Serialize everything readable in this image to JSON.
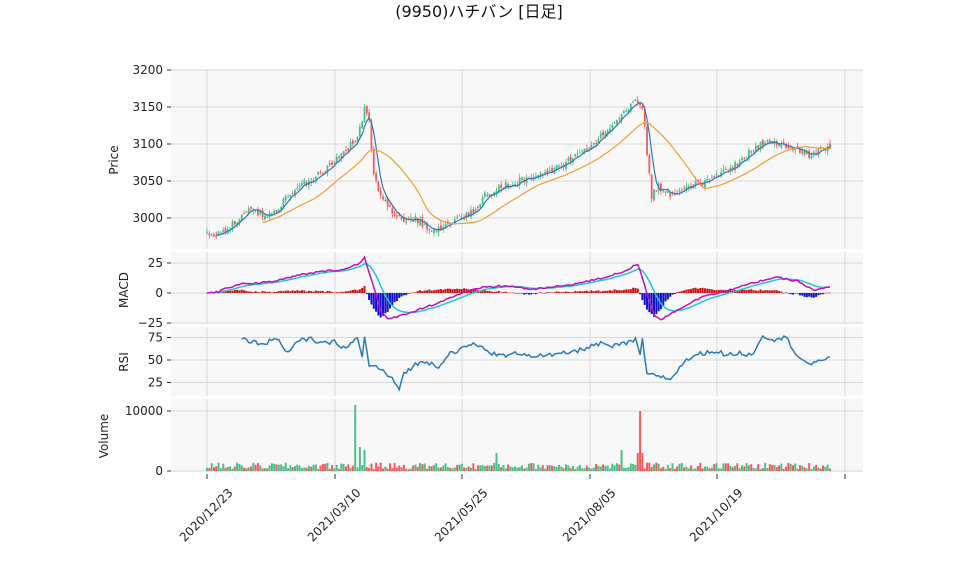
{
  "chart_data": {
    "type": "candlestick",
    "title": "(9950)ハチバン  [日足]",
    "x_ticks": [
      "2020/12/23",
      "2021/03/10",
      "2021/05/25",
      "2021/08/05",
      "2021/10/19"
    ],
    "panels": [
      {
        "name": "price",
        "ylabel": "Price",
        "ylim": [
          2965,
          3200
        ],
        "yticks": [
          "3000",
          "3050",
          "3100",
          "3150",
          "3200"
        ]
      },
      {
        "name": "macd",
        "ylabel": "MACD",
        "ylim": [
          -25,
          30
        ],
        "yticks": [
          "−25",
          "0",
          "25"
        ]
      },
      {
        "name": "rsi",
        "ylabel": "RSI",
        "ylim": [
          10,
          80
        ],
        "yticks": [
          "25",
          "50",
          "75"
        ]
      },
      {
        "name": "volume",
        "ylabel": "Volume",
        "ylim": [
          0,
          11000
        ],
        "yticks": [
          "0",
          "10000"
        ]
      }
    ],
    "price_anchors": [
      [
        0,
        2977
      ],
      [
        5,
        2978
      ],
      [
        10,
        2990
      ],
      [
        15,
        3005
      ],
      [
        20,
        3010
      ],
      [
        25,
        3003
      ],
      [
        30,
        3010
      ],
      [
        35,
        3030
      ],
      [
        40,
        3045
      ],
      [
        45,
        3050
      ],
      [
        50,
        3062
      ],
      [
        55,
        3075
      ],
      [
        60,
        3090
      ],
      [
        65,
        3112
      ],
      [
        68,
        3145
      ],
      [
        70,
        3130
      ],
      [
        72,
        3060
      ],
      [
        75,
        3030
      ],
      [
        80,
        3010
      ],
      [
        85,
        2995
      ],
      [
        90,
        3000
      ],
      [
        95,
        2985
      ],
      [
        100,
        2985
      ],
      [
        105,
        2995
      ],
      [
        110,
        3000
      ],
      [
        115,
        3010
      ],
      [
        120,
        3030
      ],
      [
        125,
        3040
      ],
      [
        130,
        3045
      ],
      [
        135,
        3050
      ],
      [
        140,
        3055
      ],
      [
        145,
        3060
      ],
      [
        150,
        3065
      ],
      [
        155,
        3075
      ],
      [
        160,
        3085
      ],
      [
        165,
        3095
      ],
      [
        170,
        3110
      ],
      [
        175,
        3125
      ],
      [
        180,
        3140
      ],
      [
        185,
        3160
      ],
      [
        188,
        3150
      ],
      [
        190,
        3090
      ],
      [
        192,
        3030
      ],
      [
        195,
        3045
      ],
      [
        200,
        3030
      ],
      [
        205,
        3035
      ],
      [
        210,
        3045
      ],
      [
        215,
        3050
      ],
      [
        220,
        3058
      ],
      [
        225,
        3065
      ],
      [
        230,
        3075
      ],
      [
        235,
        3090
      ],
      [
        240,
        3102
      ],
      [
        245,
        3105
      ],
      [
        250,
        3095
      ],
      [
        255,
        3090
      ],
      [
        260,
        3085
      ],
      [
        265,
        3092
      ],
      [
        269,
        3097
      ]
    ],
    "macd_anchors": [
      [
        0,
        0
      ],
      [
        5,
        1
      ],
      [
        10,
        5
      ],
      [
        15,
        8
      ],
      [
        20,
        8
      ],
      [
        30,
        10
      ],
      [
        40,
        15
      ],
      [
        50,
        18
      ],
      [
        60,
        20
      ],
      [
        66,
        25
      ],
      [
        68,
        30
      ],
      [
        72,
        5
      ],
      [
        75,
        -15
      ],
      [
        78,
        -22
      ],
      [
        85,
        -18
      ],
      [
        100,
        -8
      ],
      [
        110,
        0
      ],
      [
        120,
        5
      ],
      [
        130,
        6
      ],
      [
        140,
        3
      ],
      [
        150,
        5
      ],
      [
        160,
        8
      ],
      [
        170,
        12
      ],
      [
        180,
        18
      ],
      [
        186,
        24
      ],
      [
        190,
        0
      ],
      [
        193,
        -18
      ],
      [
        196,
        -22
      ],
      [
        205,
        -12
      ],
      [
        215,
        -2
      ],
      [
        225,
        2
      ],
      [
        235,
        8
      ],
      [
        245,
        13
      ],
      [
        255,
        10
      ],
      [
        262,
        2
      ],
      [
        269,
        5
      ]
    ],
    "rsi_anchors": [
      [
        15,
        73
      ],
      [
        20,
        70
      ],
      [
        25,
        68
      ],
      [
        30,
        75
      ],
      [
        35,
        58
      ],
      [
        40,
        72
      ],
      [
        45,
        73
      ],
      [
        50,
        68
      ],
      [
        55,
        70
      ],
      [
        60,
        63
      ],
      [
        65,
        75
      ],
      [
        67,
        52
      ],
      [
        68,
        75
      ],
      [
        70,
        45
      ],
      [
        75,
        40
      ],
      [
        80,
        28
      ],
      [
        83,
        18
      ],
      [
        85,
        35
      ],
      [
        90,
        45
      ],
      [
        95,
        48
      ],
      [
        100,
        43
      ],
      [
        105,
        58
      ],
      [
        110,
        62
      ],
      [
        115,
        68
      ],
      [
        120,
        62
      ],
      [
        125,
        55
      ],
      [
        130,
        55
      ],
      [
        135,
        58
      ],
      [
        140,
        55
      ],
      [
        145,
        55
      ],
      [
        150,
        55
      ],
      [
        155,
        58
      ],
      [
        160,
        60
      ],
      [
        165,
        65
      ],
      [
        170,
        68
      ],
      [
        175,
        65
      ],
      [
        180,
        68
      ],
      [
        185,
        72
      ],
      [
        187,
        55
      ],
      [
        188,
        74
      ],
      [
        190,
        33
      ],
      [
        195,
        33
      ],
      [
        200,
        28
      ],
      [
        205,
        45
      ],
      [
        210,
        55
      ],
      [
        215,
        58
      ],
      [
        220,
        60
      ],
      [
        225,
        55
      ],
      [
        230,
        58
      ],
      [
        235,
        55
      ],
      [
        240,
        77
      ],
      [
        245,
        73
      ],
      [
        250,
        75
      ],
      [
        255,
        55
      ],
      [
        260,
        45
      ],
      [
        265,
        48
      ],
      [
        269,
        55
      ]
    ],
    "volume_spikes": [
      [
        64,
        11000
      ],
      [
        66,
        4000
      ],
      [
        68,
        3500
      ],
      [
        125,
        3000
      ],
      [
        179,
        3500
      ],
      [
        187,
        10000
      ],
      [
        186,
        3000
      ],
      [
        188,
        3000
      ]
    ],
    "colors": {
      "up": "#4dbd89",
      "down": "#f25c5c",
      "ma_short": "#2c7bb6",
      "ma_long": "#f39c32",
      "macd": "#c010c0",
      "signal": "#20c8d0",
      "hist_up": "#d01010",
      "hist_down": "#1010d0",
      "rsi": "#2c7bb6",
      "panel_bg": "#f8f8f8",
      "grid": "#d8d8d8"
    }
  }
}
